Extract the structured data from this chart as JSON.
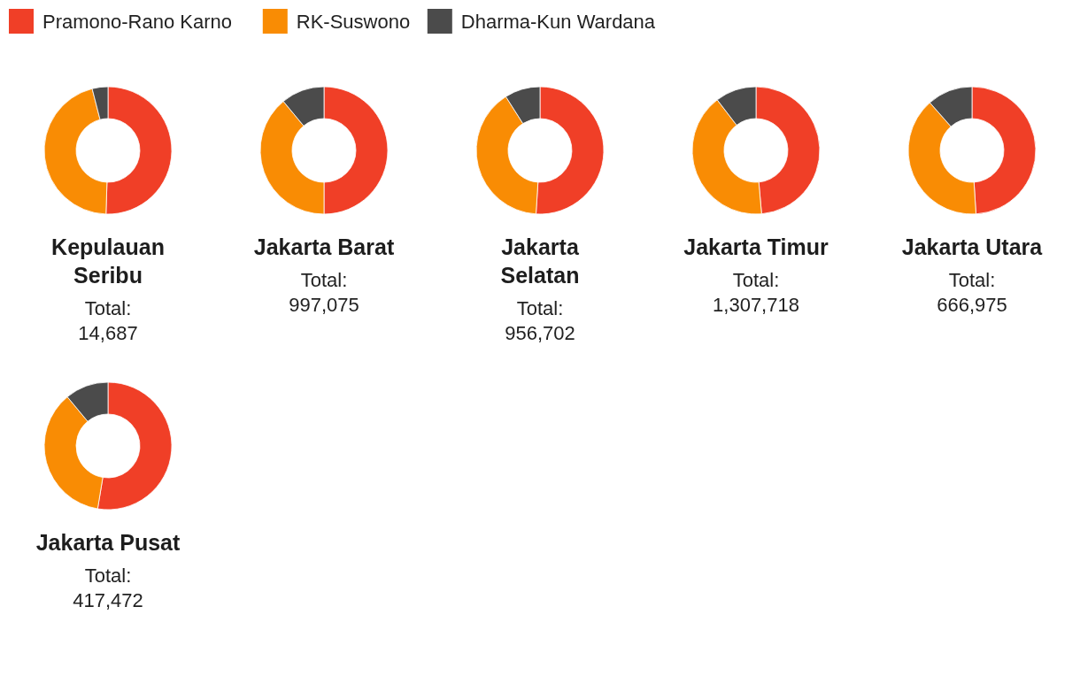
{
  "chart_data": [
    {
      "type": "donut",
      "title": "Kepulauan Seribu",
      "categories": [
        "Pramono-Rano Karno",
        "RK-Suswono",
        "Dharma-Kun Wardana"
      ],
      "values": [
        50.5,
        45.5,
        4
      ],
      "colors": [
        "#f03f27",
        "#f98c04",
        "#4b4b4b"
      ],
      "annotations": [
        "Total:",
        "14,687"
      ],
      "legend": "top"
    },
    {
      "type": "donut",
      "title": "Jakarta Barat",
      "values": [
        50,
        39,
        11
      ],
      "colors": [
        "#f03f27",
        "#f98c04",
        "#4b4b4b"
      ],
      "annotations": [
        "Total:",
        "997,075"
      ]
    },
    {
      "type": "donut",
      "title": "Jakarta Selatan",
      "values": [
        51,
        40,
        9
      ],
      "colors": [
        "#f03f27",
        "#f98c04",
        "#4b4b4b"
      ],
      "annotations": [
        "Total:",
        "956,702"
      ]
    },
    {
      "type": "donut",
      "title": "Jakarta Timur",
      "values": [
        48.6,
        41,
        10.4
      ],
      "colors": [
        "#f03f27",
        "#f98c04",
        "#4b4b4b"
      ],
      "annotations": [
        "Total:",
        "1,307,718"
      ]
    },
    {
      "type": "donut",
      "title": "Jakarta Utara",
      "values": [
        49,
        39.5,
        11.5
      ],
      "colors": [
        "#f03f27",
        "#f98c04",
        "#4b4b4b"
      ],
      "annotations": [
        "Total:",
        "666,975"
      ]
    },
    {
      "type": "donut",
      "title": "Jakarta Pusat",
      "values": [
        52.6,
        36.4,
        11
      ],
      "colors": [
        "#f03f27",
        "#f98c04",
        "#4b4b4b"
      ],
      "annotations": [
        "Total:",
        "417,472"
      ]
    }
  ]
}
